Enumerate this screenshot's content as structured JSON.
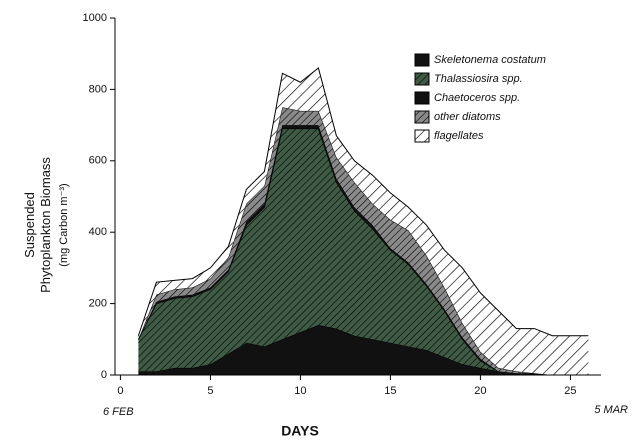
{
  "chart_data": {
    "type": "stacked-area",
    "x_label": "DAYS",
    "y_label": "Suspended Phytoplankton Biomass",
    "y_unit": "(mg Carbon m⁻³)",
    "annotations": [
      "6 FEB",
      "5 MAR"
    ],
    "x": [
      1,
      2,
      3,
      4,
      5,
      6,
      7,
      8,
      9,
      10,
      11,
      12,
      13,
      14,
      15,
      16,
      17,
      18,
      19,
      20,
      21,
      22,
      23,
      24,
      25,
      26
    ],
    "series": [
      {
        "name": "Skeletonema costatum",
        "color": "#111111",
        "hatch": "none",
        "values": [
          10,
          10,
          20,
          20,
          30,
          60,
          90,
          80,
          100,
          120,
          140,
          130,
          110,
          100,
          90,
          80,
          70,
          50,
          30,
          20,
          10,
          5,
          5,
          0,
          0,
          0
        ]
      },
      {
        "name": "Thalassiosira spp.",
        "color": "#3f5a45",
        "hatch": "dense",
        "values": [
          90,
          190,
          195,
          200,
          210,
          230,
          330,
          390,
          590,
          570,
          550,
          410,
          350,
          310,
          260,
          230,
          180,
          130,
          70,
          20,
          0,
          0,
          0,
          0,
          0,
          0
        ]
      },
      {
        "name": "Chaetoceros spp.",
        "color": "#111111",
        "hatch": "none",
        "values": [
          0,
          5,
          5,
          5,
          5,
          5,
          10,
          10,
          10,
          10,
          10,
          10,
          10,
          10,
          5,
          5,
          5,
          5,
          5,
          5,
          0,
          0,
          0,
          0,
          0,
          0
        ]
      },
      {
        "name": "other diatoms",
        "color": "#8a8a8a",
        "hatch": "dense",
        "values": [
          0,
          20,
          20,
          20,
          25,
          35,
          50,
          50,
          50,
          40,
          40,
          60,
          70,
          60,
          80,
          90,
          80,
          60,
          40,
          20,
          10,
          5,
          0,
          0,
          0,
          0
        ]
      },
      {
        "name": "flagellates",
        "color": "#ffffff",
        "hatch": "sparse",
        "values": [
          10,
          35,
          25,
          25,
          30,
          30,
          40,
          40,
          95,
          80,
          120,
          60,
          60,
          80,
          75,
          65,
          85,
          105,
          155,
          165,
          160,
          120,
          125,
          110,
          110,
          110
        ]
      }
    ],
    "xlim": [
      -0.3,
      26.7
    ],
    "xticks": [
      0,
      5,
      10,
      15,
      20,
      25
    ],
    "ylim": [
      0,
      1000
    ],
    "yticks": [
      0,
      200,
      400,
      600,
      800,
      1000
    ],
    "legend": "top-right"
  }
}
